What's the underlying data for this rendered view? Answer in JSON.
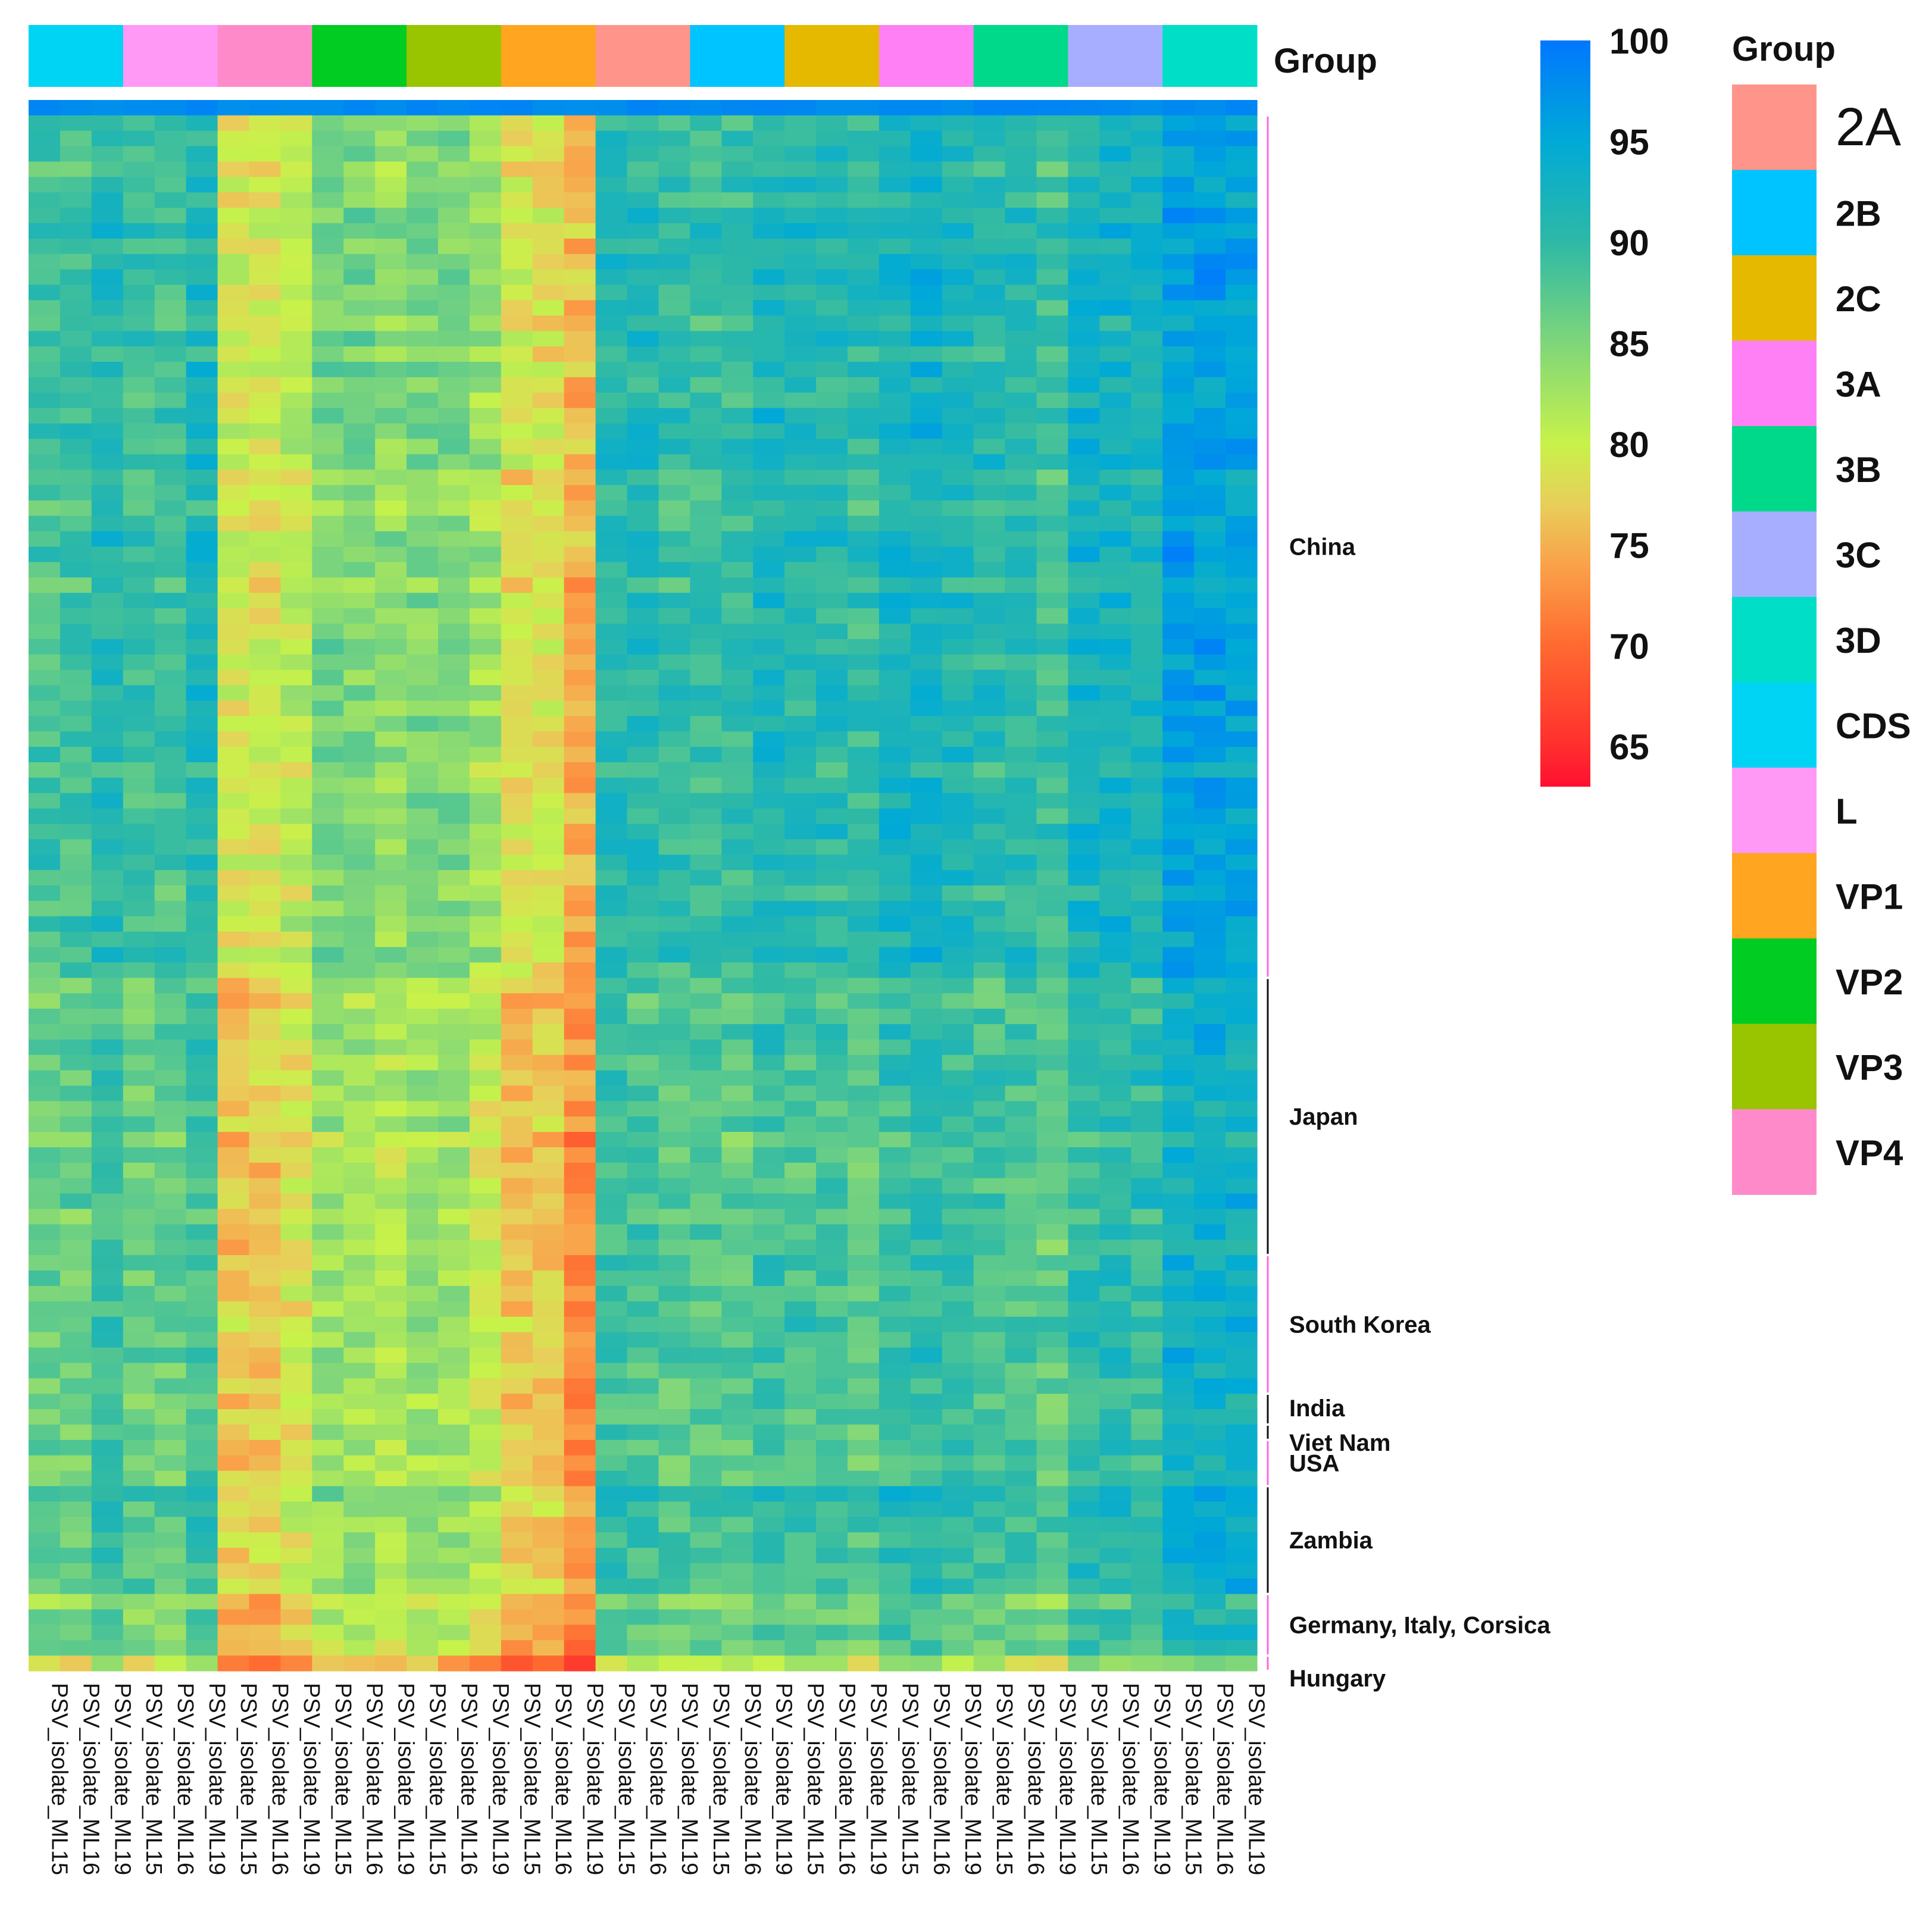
{
  "chart_data": {
    "type": "heatmap",
    "column_annotation_title": "Group",
    "column_groups": [
      {
        "name": "CDS",
        "color": "#00D4F5"
      },
      {
        "name": "L",
        "color": "#FF99F5"
      },
      {
        "name": "VP4",
        "color": "#FF8AC9"
      },
      {
        "name": "VP2",
        "color": "#00CC22"
      },
      {
        "name": "VP3",
        "color": "#99C400"
      },
      {
        "name": "VP1",
        "color": "#FFA51F"
      },
      {
        "name": "2A",
        "color": "#FF958A"
      },
      {
        "name": "2B",
        "color": "#00C4FF"
      },
      {
        "name": "2C",
        "color": "#E5B900"
      },
      {
        "name": "3A",
        "color": "#FF7FF5"
      },
      {
        "name": "3B",
        "color": "#00D98A"
      },
      {
        "name": "3C",
        "color": "#A8AEFF"
      },
      {
        "name": "3D",
        "color": "#00DEC8"
      }
    ],
    "column_labels": [
      "PSV_isolate_ML15",
      "PSV_isolate_ML16",
      "PSV_isolate_ML19",
      "PSV_isolate_ML15",
      "PSV_isolate_ML16",
      "PSV_isolate_ML19",
      "PSV_isolate_ML15",
      "PSV_isolate_ML16",
      "PSV_isolate_ML19",
      "PSV_isolate_ML15",
      "PSV_isolate_ML16",
      "PSV_isolate_ML19",
      "PSV_isolate_ML15",
      "PSV_isolate_ML16",
      "PSV_isolate_ML19",
      "PSV_isolate_ML15",
      "PSV_isolate_ML16",
      "PSV_isolate_ML19",
      "PSV_isolate_ML15",
      "PSV_isolate_ML16",
      "PSV_isolate_ML19",
      "PSV_isolate_ML15",
      "PSV_isolate_ML16",
      "PSV_isolate_ML19",
      "PSV_isolate_ML15",
      "PSV_isolate_ML16",
      "PSV_isolate_ML19",
      "PSV_isolate_ML15",
      "PSV_isolate_ML16",
      "PSV_isolate_ML19",
      "PSV_isolate_ML15",
      "PSV_isolate_ML16",
      "PSV_isolate_ML19",
      "PSV_isolate_ML15",
      "PSV_isolate_ML16",
      "PSV_isolate_ML19",
      "PSV_isolate_ML15",
      "PSV_isolate_ML16",
      "PSV_isolate_ML19"
    ],
    "row_groups": [
      {
        "label": "China",
        "rows": 56,
        "bar_color": "#FF66E0"
      },
      {
        "label": "Japan",
        "rows": 18,
        "bar_color": "#111111"
      },
      {
        "label": "South Korea",
        "rows": 9,
        "bar_color": "#FF66E0"
      },
      {
        "label": "India",
        "rows": 2,
        "bar_color": "#111111"
      },
      {
        "label": "Viet Nam",
        "rows": 1,
        "bar_color": "#111111"
      },
      {
        "label": "USA",
        "rows": 3,
        "bar_color": "#FF66E0"
      },
      {
        "label": "Zambia",
        "rows": 7,
        "bar_color": "#111111"
      },
      {
        "label": "Germany, Italy, Corsica",
        "rows": 4,
        "bar_color": "#FF66E0"
      },
      {
        "label": "Hungary",
        "rows": 1,
        "bar_color": "#FF66E0"
      }
    ],
    "value_range": [
      63,
      100
    ],
    "colorbar_ticks": [
      100,
      95,
      90,
      85,
      80,
      75,
      70,
      65
    ],
    "color_stops": [
      {
        "value": 100,
        "color": "#0077FF"
      },
      {
        "value": 95,
        "color": "#00AAD6"
      },
      {
        "value": 90,
        "color": "#2EB9A6"
      },
      {
        "value": 85,
        "color": "#7FD67A"
      },
      {
        "value": 80,
        "color": "#C8F24A"
      },
      {
        "value": 77,
        "color": "#E8CE5A"
      },
      {
        "value": 74,
        "color": "#FAA24A"
      },
      {
        "value": 70,
        "color": "#FF6A30"
      },
      {
        "value": 65,
        "color": "#FF2E2E"
      },
      {
        "value": 63,
        "color": "#FF1030"
      }
    ],
    "legend_title": "Group",
    "legend_entries": [
      "2A",
      "2B",
      "2C",
      "3A",
      "3B",
      "3C",
      "3D",
      "CDS",
      "L",
      "VP1",
      "VP2",
      "VP3",
      "VP4"
    ],
    "group_typical_values": {
      "CDS": [
        88.5,
        88.5,
        91
      ],
      "L": [
        88.5,
        88.5,
        91
      ],
      "VP4": [
        79,
        79,
        81
      ],
      "VP2": [
        85,
        85,
        83.5
      ],
      "VP3": [
        85,
        85,
        82.5
      ],
      "VP1": [
        78.5,
        78.5,
        76.5
      ],
      "2A": [
        91,
        90.5,
        89.5
      ],
      "2B": [
        89.5,
        89.5,
        91.5
      ],
      "2C": [
        90.5,
        90.5,
        89.5
      ],
      "3A": [
        92,
        92.5,
        91.5
      ],
      "3B": [
        90.5,
        90.5,
        89
      ],
      "3C": [
        92.5,
        92.5,
        92
      ],
      "3D": [
        95.5,
        95.5,
        95
      ]
    },
    "country_offsets": {
      "China": 0,
      "Japan": -2.5,
      "South Korea": -1.8,
      "India": -2.5,
      "Viet Nam": -1.5,
      "USA": -2.5,
      "Zambia": -1,
      "Germany, Italy, Corsica": -4,
      "Hungary": -9
    },
    "row_values_note": "",
    "first_row_value": 99
  }
}
